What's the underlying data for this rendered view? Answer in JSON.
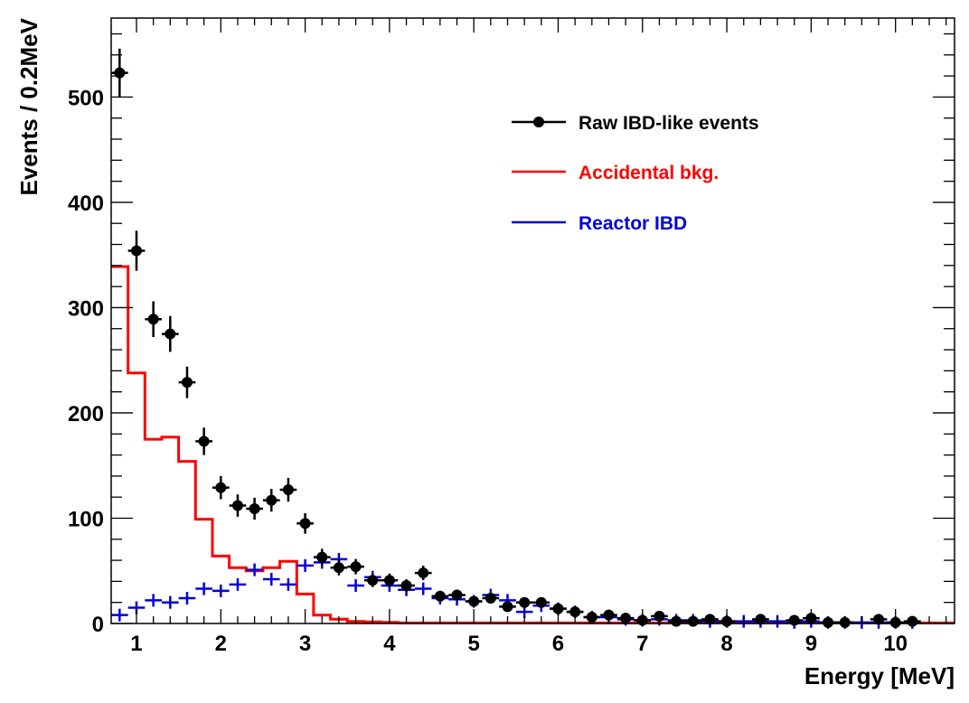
{
  "chart_data": {
    "type": "scatter",
    "title": "",
    "xlabel": "Energy [MeV]",
    "ylabel": "Events / 0.2MeV",
    "xlim": [
      0.7,
      10.7
    ],
    "ylim": [
      0,
      575
    ],
    "x_ticks": [
      1,
      2,
      3,
      4,
      5,
      6,
      7,
      8,
      9,
      10
    ],
    "x_tick_labels": [
      "1",
      "2",
      "3",
      "4",
      "5",
      "6",
      "7",
      "8",
      "9",
      "10"
    ],
    "y_ticks": [
      0,
      100,
      200,
      300,
      400,
      500
    ],
    "y_tick_labels": [
      "0",
      "100",
      "200",
      "300",
      "400",
      "500"
    ],
    "grid": false,
    "legend_position": "top-right",
    "bin_width": 0.2,
    "series": [
      {
        "name": "Raw IBD-like events",
        "style": "markers-with-errors",
        "color": "#000000",
        "x": [
          0.8,
          1.0,
          1.2,
          1.4,
          1.6,
          1.8,
          2.0,
          2.2,
          2.4,
          2.6,
          2.8,
          3.0,
          3.2,
          3.4,
          3.6,
          3.8,
          4.0,
          4.2,
          4.4,
          4.6,
          4.8,
          5.0,
          5.2,
          5.4,
          5.6,
          5.8,
          6.0,
          6.2,
          6.4,
          6.6,
          6.8,
          7.0,
          7.2,
          7.4,
          7.6,
          7.8,
          8.0,
          8.4,
          8.8,
          9.0,
          9.2,
          9.4,
          9.8,
          10.0,
          10.2
        ],
        "y": [
          523,
          354,
          289,
          275,
          229,
          173,
          129,
          112,
          109,
          117,
          127,
          95,
          63,
          53,
          54,
          41,
          41,
          36,
          48,
          26,
          27,
          21,
          24,
          16,
          20,
          20,
          14,
          11,
          6,
          8,
          5,
          3,
          7,
          2,
          2,
          4,
          2,
          4,
          3,
          5,
          1,
          1,
          4,
          1,
          2
        ],
        "err": [
          23,
          19,
          17,
          17,
          15,
          13,
          11,
          10.6,
          10.4,
          10.8,
          11.3,
          9.7,
          7.9,
          7.3,
          7.3,
          6.4,
          6.4,
          6,
          6.9,
          5.1,
          5.2,
          4.6,
          4.9,
          4,
          4.5,
          4.5,
          3.7,
          3.3,
          2.4,
          2.8,
          2.2,
          1.7,
          2.6,
          1.4,
          1.4,
          2,
          1.4,
          2,
          1.7,
          2.2,
          1,
          1,
          2,
          1,
          1.4
        ]
      },
      {
        "name": "Accidental bkg.",
        "style": "step-histogram",
        "color": "#ff0000",
        "bin_edges": [
          0.7,
          0.9,
          1.1,
          1.3,
          1.5,
          1.7,
          1.9,
          2.1,
          2.3,
          2.5,
          2.7,
          2.9,
          3.1,
          3.3,
          3.5,
          3.7,
          3.9,
          4.1,
          10.7
        ],
        "values": [
          339,
          238,
          175,
          177,
          154,
          99,
          64,
          53,
          50,
          53,
          59,
          28,
          8,
          4,
          2,
          1.5,
          1,
          0.5
        ]
      },
      {
        "name": "Reactor IBD",
        "style": "crosses",
        "color": "#0000dd",
        "x": [
          0.8,
          1.0,
          1.2,
          1.4,
          1.6,
          1.8,
          2.0,
          2.2,
          2.4,
          2.6,
          2.8,
          3.0,
          3.2,
          3.4,
          3.6,
          3.8,
          4.0,
          4.2,
          4.4,
          4.6,
          4.8,
          5.0,
          5.2,
          5.4,
          5.6,
          5.8,
          6.0,
          6.2,
          6.4,
          6.6,
          6.8,
          7.0,
          7.2,
          7.4,
          7.6,
          7.8,
          8.0,
          8.2,
          8.4,
          8.6,
          8.8,
          9.0,
          9.2,
          9.4,
          9.6,
          9.8,
          10.0,
          10.2
        ],
        "y": [
          8,
          15,
          22,
          20,
          24,
          33,
          31,
          37,
          51,
          42,
          37,
          55,
          58,
          61,
          36,
          44,
          36,
          32,
          33,
          24,
          23,
          21,
          27,
          22,
          11,
          17,
          14,
          11,
          6,
          6,
          4,
          3,
          4,
          3,
          3,
          2,
          2,
          2,
          2,
          2,
          1,
          2,
          1,
          1,
          1,
          1,
          1,
          1
        ]
      }
    ]
  },
  "colors": {
    "frame": "#000000",
    "background": "#ffffff"
  }
}
